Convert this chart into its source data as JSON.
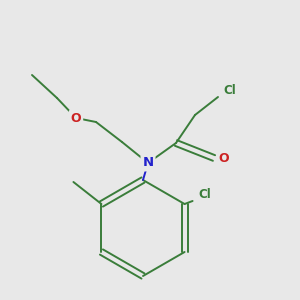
{
  "background_color": "#e8e8e8",
  "bond_color": "#3a7d3a",
  "n_color": "#2222cc",
  "o_color": "#cc2222",
  "cl_color": "#3a7d3a",
  "line_width": 1.4,
  "figsize": [
    3.0,
    3.0
  ],
  "dpi": 100,
  "xlim": [
    0,
    300
  ],
  "ylim": [
    0,
    300
  ]
}
